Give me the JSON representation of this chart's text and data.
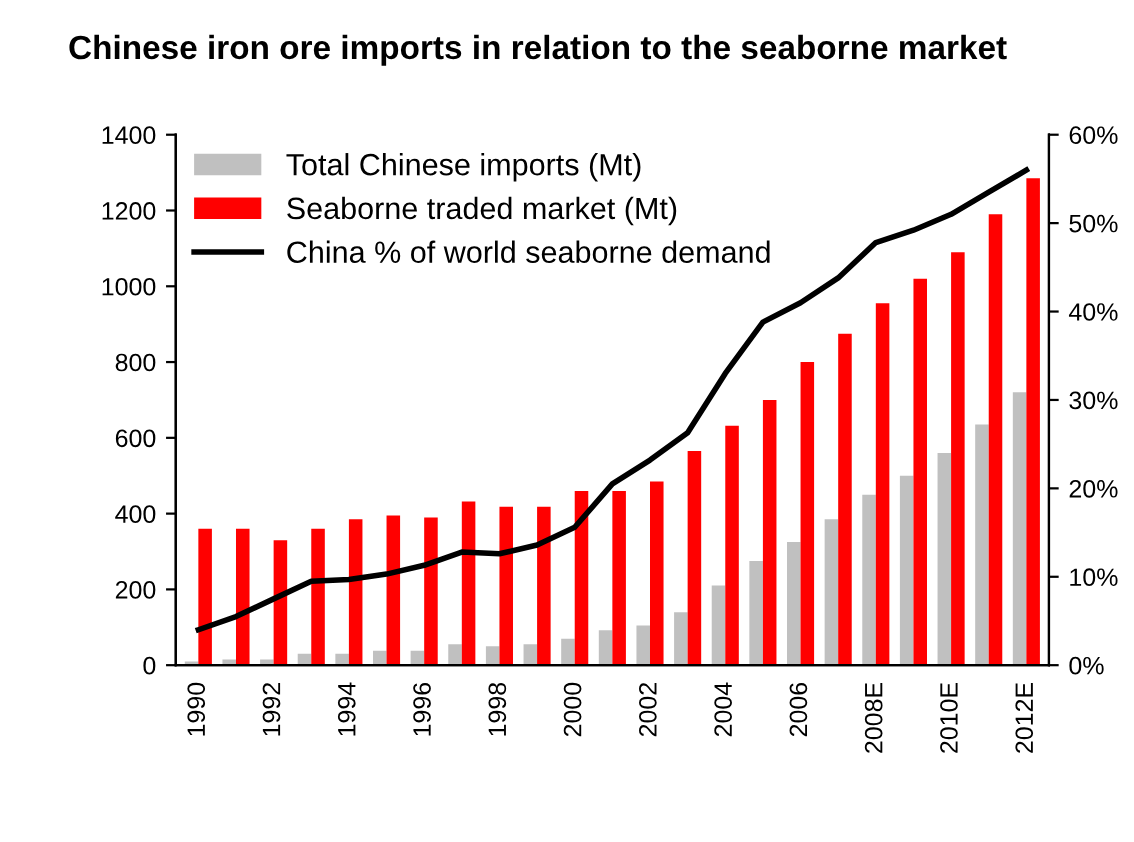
{
  "chart_data": {
    "type": "bar",
    "title": "Chinese iron ore imports in relation to the seaborne market",
    "categories": [
      "1990",
      null,
      "1992",
      null,
      "1994",
      null,
      "1996",
      null,
      "1998",
      null,
      "2000",
      null,
      "2002",
      null,
      "2004",
      null,
      "2006",
      null,
      "2008E",
      null,
      "2010E",
      null,
      "2012E"
    ],
    "series": [
      {
        "name": "Total Chinese imports (Mt)",
        "color": "#c0c0c0",
        "values": [
          10,
          15,
          15,
          30,
          30,
          38,
          38,
          55,
          50,
          55,
          70,
          92,
          105,
          140,
          210,
          275,
          325,
          385,
          450,
          500,
          560,
          635,
          720
        ]
      },
      {
        "name": "Seaborne traded market (Mt)",
        "color": "#ff0000",
        "values": [
          360,
          360,
          330,
          360,
          385,
          395,
          390,
          432,
          418,
          418,
          460,
          460,
          485,
          565,
          632,
          700,
          800,
          875,
          955,
          1020,
          1090,
          1190,
          1285
        ]
      },
      {
        "name": "China % of world seaborne demand",
        "type": "line",
        "axis": "y2",
        "color": "#000000",
        "values": [
          4,
          5.5,
          7.5,
          9.5,
          9.7,
          10.3,
          11.3,
          12.8,
          12.6,
          13.6,
          15.6,
          20.5,
          23.2,
          26.3,
          33,
          38.8,
          41,
          43.8,
          47.8,
          49.2,
          51,
          53.5,
          56
        ]
      }
    ],
    "ylim": [
      0,
      1400
    ],
    "yticks": [
      0,
      200,
      400,
      600,
      800,
      1000,
      1200,
      1400
    ],
    "y2lim": [
      0,
      60
    ],
    "y2ticks": [
      {
        "value": 0,
        "label": "0%"
      },
      {
        "value": 10,
        "label": "10%"
      },
      {
        "value": 20,
        "label": "20%"
      },
      {
        "value": 30,
        "label": "30%"
      },
      {
        "value": 40,
        "label": "40%"
      },
      {
        "value": 50,
        "label": "50%"
      },
      {
        "value": 60,
        "label": "60%"
      }
    ],
    "grid": false,
    "legend": "top left",
    "marker": "none",
    "line_style": "solid"
  }
}
